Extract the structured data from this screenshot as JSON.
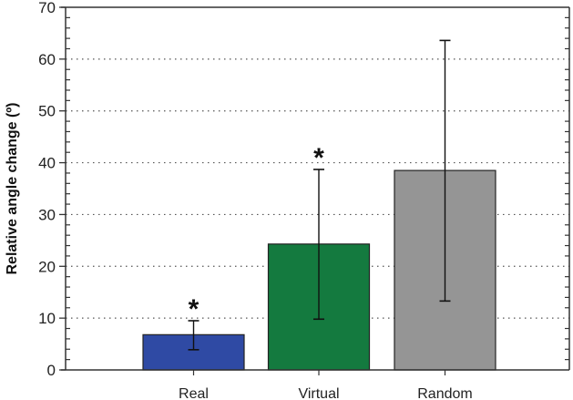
{
  "chart_data": {
    "type": "bar",
    "title": "",
    "xlabel": "",
    "ylabel": "Relative angle change (º)",
    "ylim": [
      0,
      70
    ],
    "yticks": [
      0,
      10,
      20,
      30,
      40,
      50,
      60,
      70
    ],
    "grid": "horizontal dotted",
    "legend": null,
    "categories": [
      "Real",
      "Virtual",
      "Random"
    ],
    "values": [
      6.8,
      24.3,
      38.5
    ],
    "error_upper": [
      9.5,
      38.7,
      63.6
    ],
    "error_lower": [
      3.9,
      9.8,
      13.3
    ],
    "colors": [
      "#2f4aa4",
      "#147a3f",
      "#959595"
    ],
    "annotations": [
      {
        "category": "Real",
        "text": "*"
      },
      {
        "category": "Virtual",
        "text": "*"
      }
    ]
  },
  "ylabel": "Relative angle change (º)",
  "categories": [
    "Real",
    "Virtual",
    "Random"
  ]
}
